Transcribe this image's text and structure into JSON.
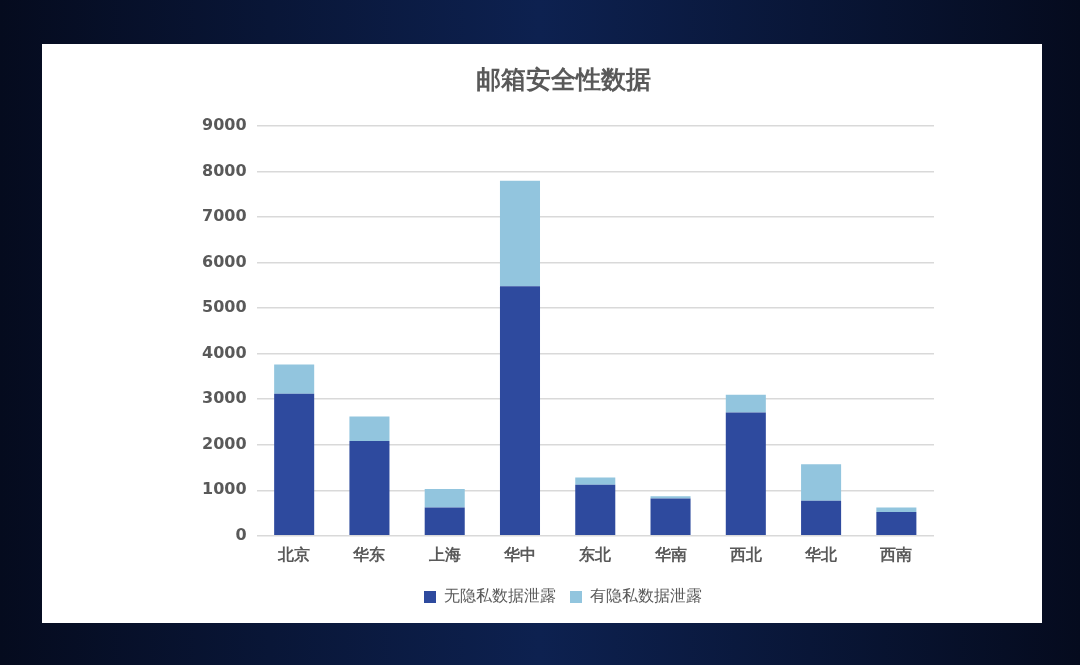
{
  "chart_data": {
    "type": "bar",
    "title": "邮箱安全性数据",
    "categories": [
      "北京",
      "华东",
      "上海",
      "华中",
      "东北",
      "华南",
      "西北",
      "华北",
      "西南"
    ],
    "series": [
      {
        "name": "无隐私数据泄露",
        "color": "#2e4a9e",
        "values": [
          3120,
          2080,
          620,
          5480,
          1120,
          820,
          2710,
          770,
          520
        ]
      },
      {
        "name": "有隐私数据泄露",
        "color": "#92c5de",
        "values": [
          640,
          540,
          410,
          2320,
          160,
          50,
          390,
          800,
          100
        ]
      }
    ],
    "stacked": true,
    "ylim": [
      0,
      9000
    ],
    "yticks": [
      0,
      1000,
      2000,
      3000,
      4000,
      5000,
      6000,
      7000,
      8000,
      9000
    ],
    "grid": "y",
    "legend": "bottom"
  }
}
